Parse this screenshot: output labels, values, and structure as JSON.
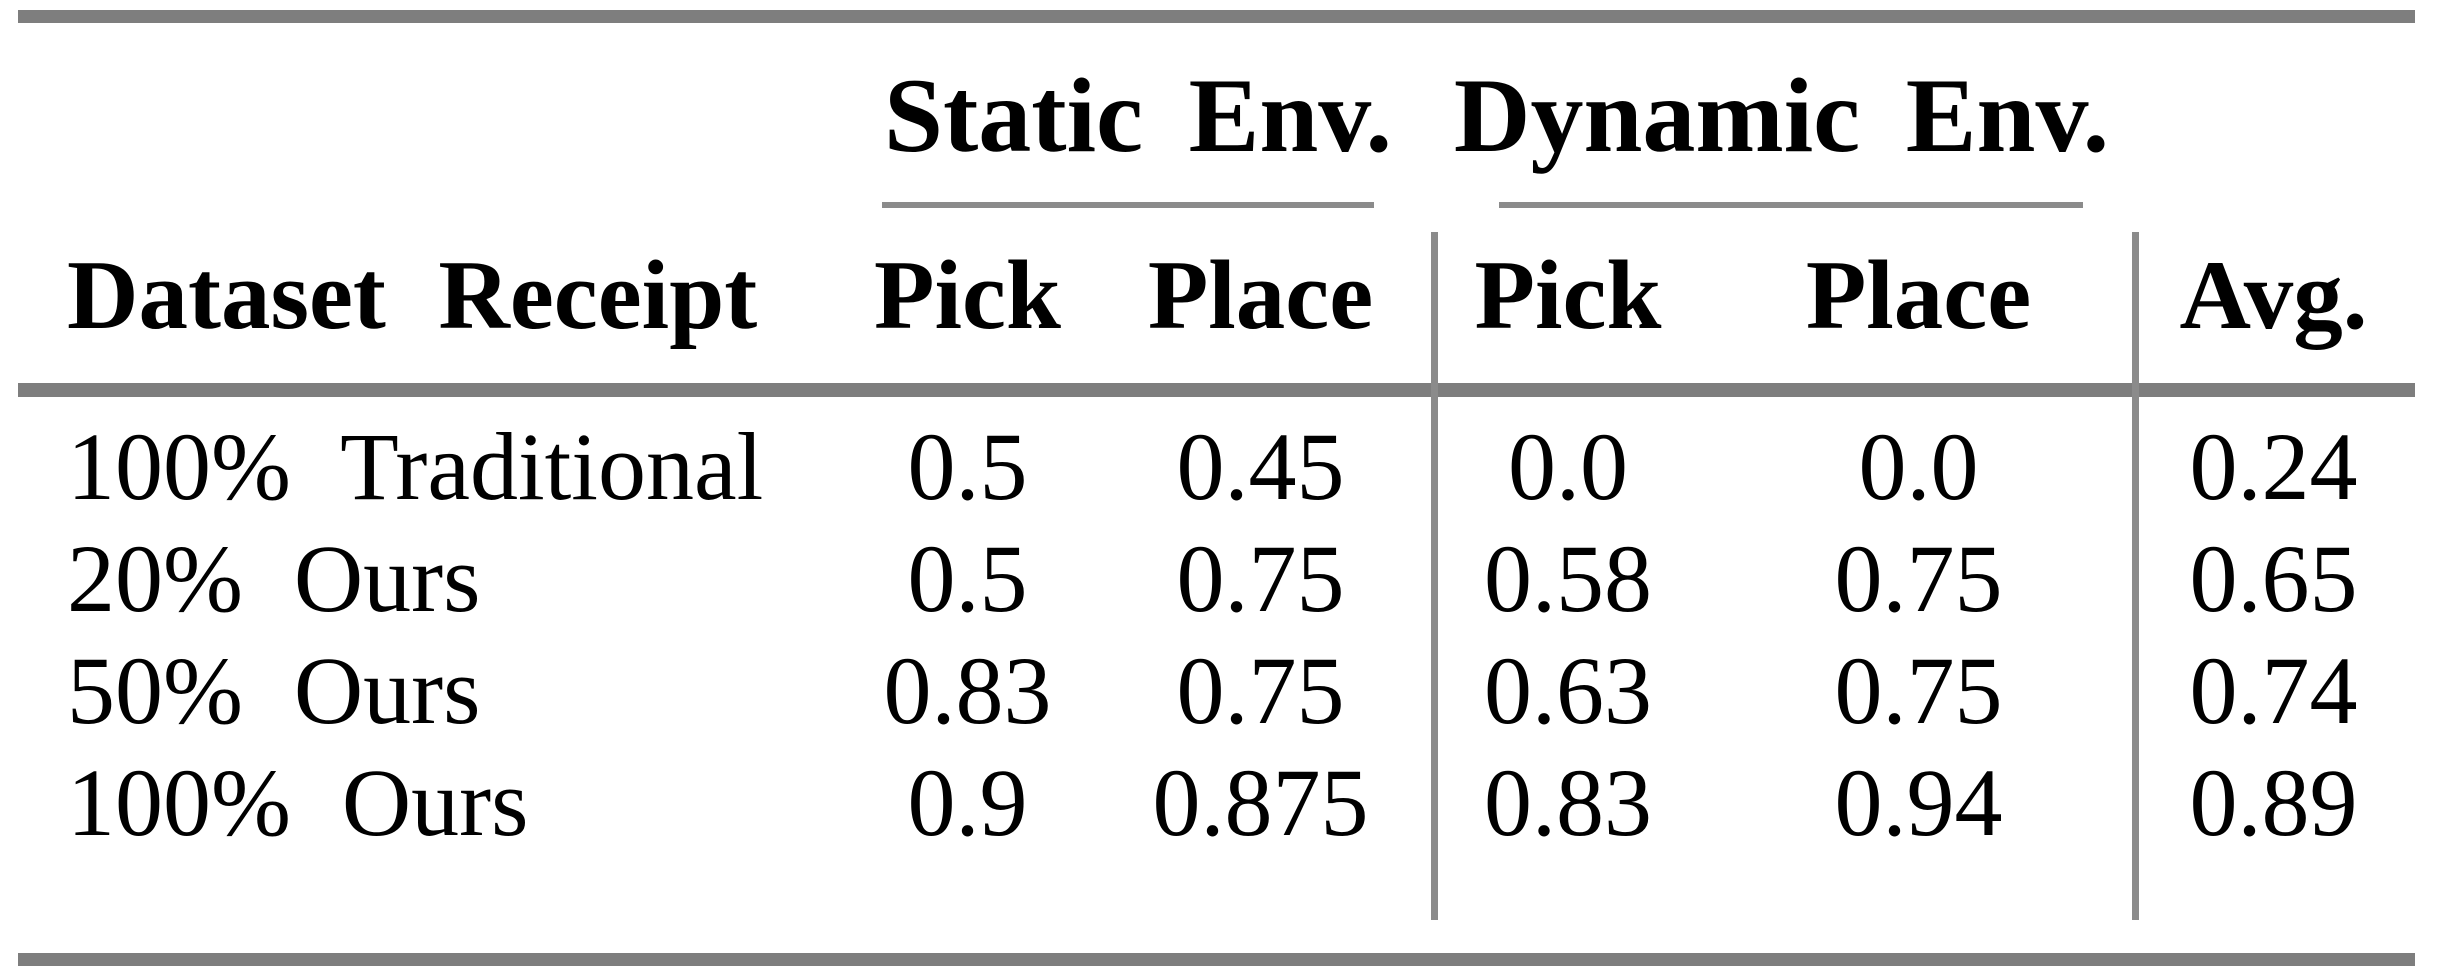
{
  "table": {
    "col_groups": [
      {
        "label": "Static Env."
      },
      {
        "label": "Dynamic Env."
      }
    ],
    "columns": [
      "Dataset Receipt",
      "Pick",
      "Place",
      "Pick",
      "Place",
      "Avg."
    ],
    "rows": [
      {
        "label": "100% Traditional",
        "values": [
          "0.5",
          "0.45",
          "0.0",
          "0.0",
          "0.24"
        ]
      },
      {
        "label": "20% Ours",
        "values": [
          "0.5",
          "0.75",
          "0.58",
          "0.75",
          "0.65"
        ]
      },
      {
        "label": "50% Ours",
        "values": [
          "0.83",
          "0.75",
          "0.63",
          "0.75",
          "0.74"
        ]
      },
      {
        "label": "100% Ours",
        "values": [
          "0.9",
          "0.875",
          "0.83",
          "0.94",
          "0.89"
        ]
      }
    ],
    "colors": {
      "background": "#ffffff",
      "text": "#000000",
      "thick_rule": "#7e7e7e",
      "thin_rule": "#8b8b8b"
    }
  },
  "chart_data": {
    "type": "table",
    "title": "",
    "column_groups": [
      "Static Env.",
      "Dynamic Env."
    ],
    "columns": [
      "Dataset Receipt",
      "Static Pick",
      "Static Place",
      "Dynamic Pick",
      "Dynamic Place",
      "Avg."
    ],
    "rows": [
      [
        "100% Traditional",
        0.5,
        0.45,
        0.0,
        0.0,
        0.24
      ],
      [
        "20% Ours",
        0.5,
        0.75,
        0.58,
        0.75,
        0.65
      ],
      [
        "50% Ours",
        0.83,
        0.75,
        0.63,
        0.75,
        0.74
      ],
      [
        "100% Ours",
        0.9,
        0.875,
        0.83,
        0.94,
        0.89
      ]
    ]
  }
}
